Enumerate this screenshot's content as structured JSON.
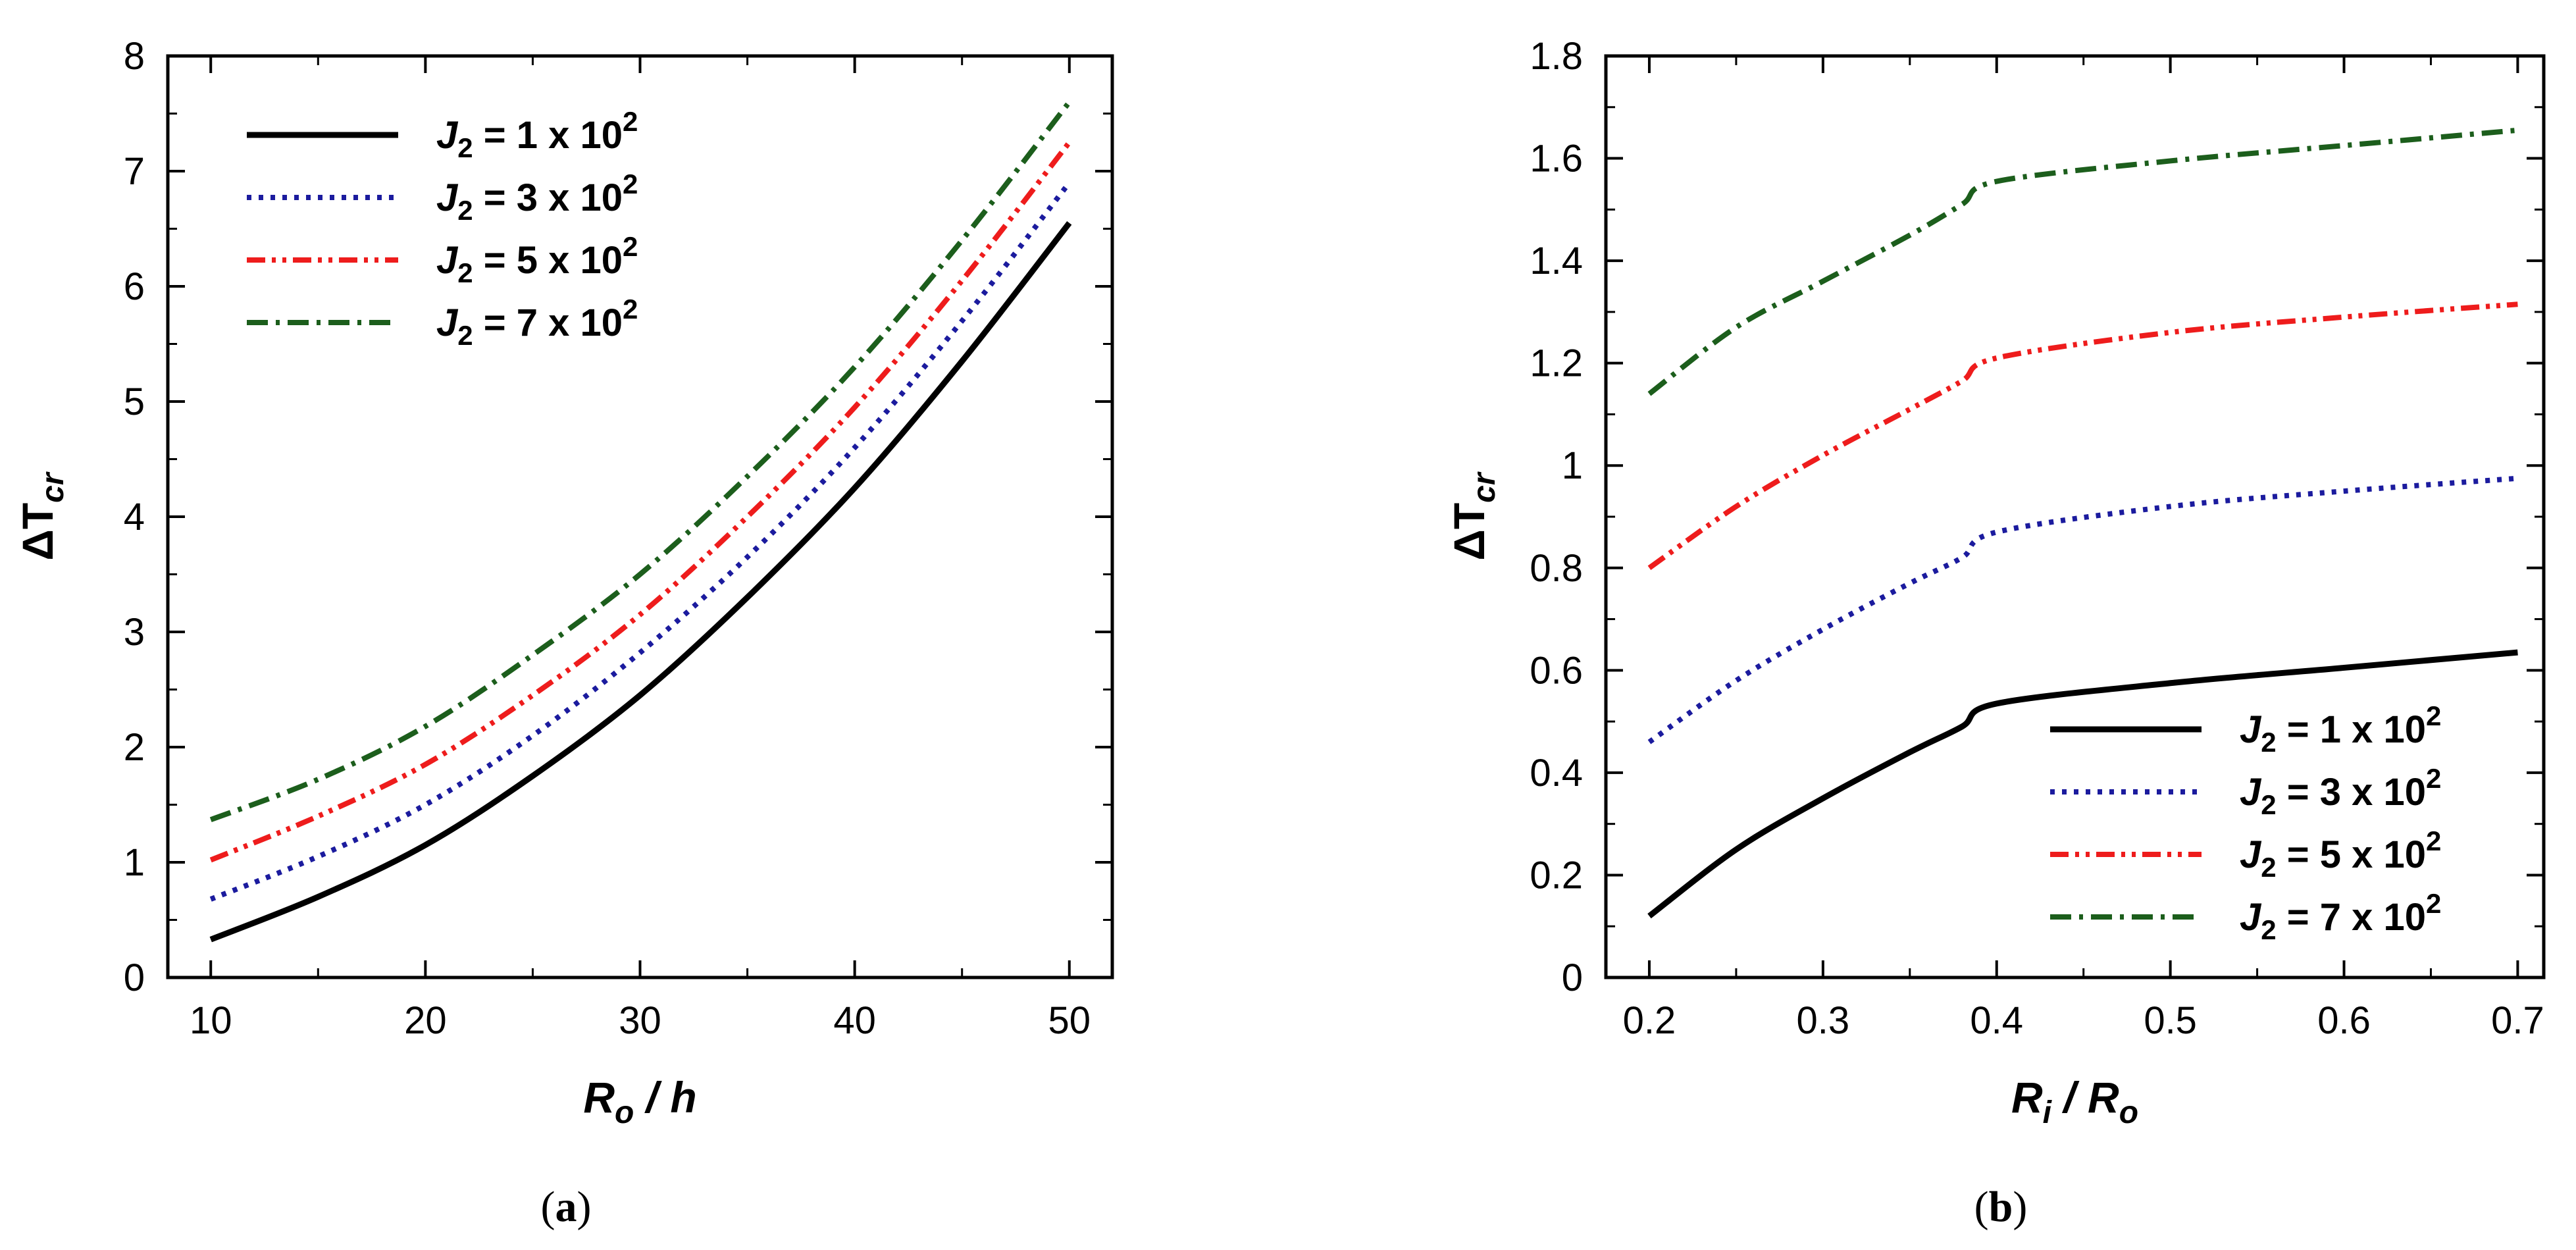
{
  "chart_data": [
    {
      "type": "line",
      "panel_label": "a",
      "caption": {
        "open": "(",
        "letter": "a",
        "close": ")"
      },
      "xlabel": {
        "main": "R",
        "sub": "o",
        "rest": " / h"
      },
      "ylabel": {
        "main": "ΔT",
        "sub": "cr"
      },
      "xlim": [
        8,
        52
      ],
      "ylim": [
        0,
        8
      ],
      "xticks": [
        10,
        20,
        30,
        40,
        50
      ],
      "yticks": [
        0,
        1,
        2,
        3,
        4,
        5,
        6,
        7,
        8
      ],
      "grid": false,
      "legend_position": "top-left",
      "series": [
        {
          "name": "J2 = 1 x 10^2",
          "legend": {
            "main": "J",
            "sub": "2",
            "text": " = 1 x 10",
            "sup": "2"
          },
          "style": "solid",
          "color": "#000000",
          "x": [
            10,
            15,
            20,
            25,
            30,
            35,
            40,
            45,
            50
          ],
          "values": [
            0.33,
            0.7,
            1.15,
            1.75,
            2.45,
            3.3,
            4.25,
            5.35,
            6.55
          ]
        },
        {
          "name": "J2 = 3 x 10^2",
          "legend": {
            "main": "J",
            "sub": "2",
            "text": " = 3 x 10",
            "sup": "2"
          },
          "style": "dotted",
          "color": "#1b1b9e",
          "x": [
            10,
            15,
            20,
            25,
            30,
            35,
            40,
            45,
            50
          ],
          "values": [
            0.68,
            1.05,
            1.5,
            2.1,
            2.82,
            3.65,
            4.6,
            5.7,
            6.9
          ]
        },
        {
          "name": "J2 = 5 x 10^2",
          "legend": {
            "main": "J",
            "sub": "2",
            "text": " = 5 x 10",
            "sup": "2"
          },
          "style": "dash-dot-dot",
          "color": "#ee1c1c",
          "x": [
            10,
            15,
            20,
            25,
            30,
            35,
            40,
            45,
            50
          ],
          "values": [
            1.02,
            1.4,
            1.85,
            2.45,
            3.15,
            4.0,
            4.95,
            6.05,
            7.25
          ]
        },
        {
          "name": "J2 = 7 x 10^2",
          "legend": {
            "main": "J",
            "sub": "2",
            "text": " = 7 x 10",
            "sup": "2"
          },
          "style": "dash-dot",
          "color": "#1c5e1c",
          "x": [
            10,
            15,
            20,
            25,
            30,
            35,
            40,
            45,
            50
          ],
          "values": [
            1.37,
            1.72,
            2.18,
            2.8,
            3.5,
            4.35,
            5.3,
            6.4,
            7.6
          ]
        }
      ]
    },
    {
      "type": "line",
      "panel_label": "b",
      "caption": {
        "open": "(",
        "letter": "b",
        "close": ")"
      },
      "xlabel": {
        "main": "R",
        "sub": "i",
        "rest": " / ",
        "main2": "R",
        "sub2": "o"
      },
      "ylabel": {
        "main": "ΔT",
        "sub": "cr"
      },
      "xlim": [
        0.175,
        0.715
      ],
      "ylim": [
        0,
        1.8
      ],
      "xticks": [
        0.2,
        0.3,
        0.4,
        0.5,
        0.6,
        0.7
      ],
      "yticks": [
        0,
        0.2,
        0.4,
        0.6,
        0.8,
        1,
        1.2,
        1.4,
        1.6,
        1.8
      ],
      "xtick_labels": [
        "0.2",
        "0.3",
        "0.4",
        "0.5",
        "0.6",
        "0.7"
      ],
      "ytick_labels": [
        "0",
        "0.2",
        "0.4",
        "0.6",
        "0.8",
        "1",
        "1.2",
        "1.4",
        "1.6",
        "1.8"
      ],
      "grid": false,
      "legend_position": "bottom-right",
      "series": [
        {
          "name": "J2 = 1 x 10^2",
          "legend": {
            "main": "J",
            "sub": "2",
            "text": " = 1 x 10",
            "sup": "2"
          },
          "style": "solid",
          "color": "#000000",
          "x": [
            0.2,
            0.25,
            0.3,
            0.35,
            0.38,
            0.4,
            0.5,
            0.6,
            0.7
          ],
          "values": [
            0.12,
            0.25,
            0.35,
            0.44,
            0.49,
            0.535,
            0.575,
            0.605,
            0.635
          ]
        },
        {
          "name": "J2 = 3 x 10^2",
          "legend": {
            "main": "J",
            "sub": "2",
            "text": " = 3 x 10",
            "sup": "2"
          },
          "style": "dotted",
          "color": "#1b1b9e",
          "x": [
            0.2,
            0.25,
            0.3,
            0.35,
            0.38,
            0.4,
            0.5,
            0.6,
            0.7
          ],
          "values": [
            0.46,
            0.58,
            0.68,
            0.77,
            0.82,
            0.87,
            0.92,
            0.95,
            0.975
          ]
        },
        {
          "name": "J2 = 5 x 10^2",
          "legend": {
            "main": "J",
            "sub": "2",
            "text": " = 5 x 10",
            "sup": "2"
          },
          "style": "dash-dot-dot",
          "color": "#ee1c1c",
          "x": [
            0.2,
            0.25,
            0.3,
            0.35,
            0.38,
            0.4,
            0.5,
            0.6,
            0.7
          ],
          "values": [
            0.8,
            0.92,
            1.02,
            1.11,
            1.165,
            1.21,
            1.26,
            1.29,
            1.315
          ]
        },
        {
          "name": "J2 = 7 x 10^2",
          "legend": {
            "main": "J",
            "sub": "2",
            "text": " = 7 x 10",
            "sup": "2"
          },
          "style": "dash-dot",
          "color": "#1c5e1c",
          "x": [
            0.2,
            0.25,
            0.3,
            0.35,
            0.38,
            0.4,
            0.5,
            0.6,
            0.7
          ],
          "values": [
            1.14,
            1.27,
            1.36,
            1.45,
            1.51,
            1.555,
            1.595,
            1.625,
            1.655
          ]
        }
      ]
    }
  ]
}
